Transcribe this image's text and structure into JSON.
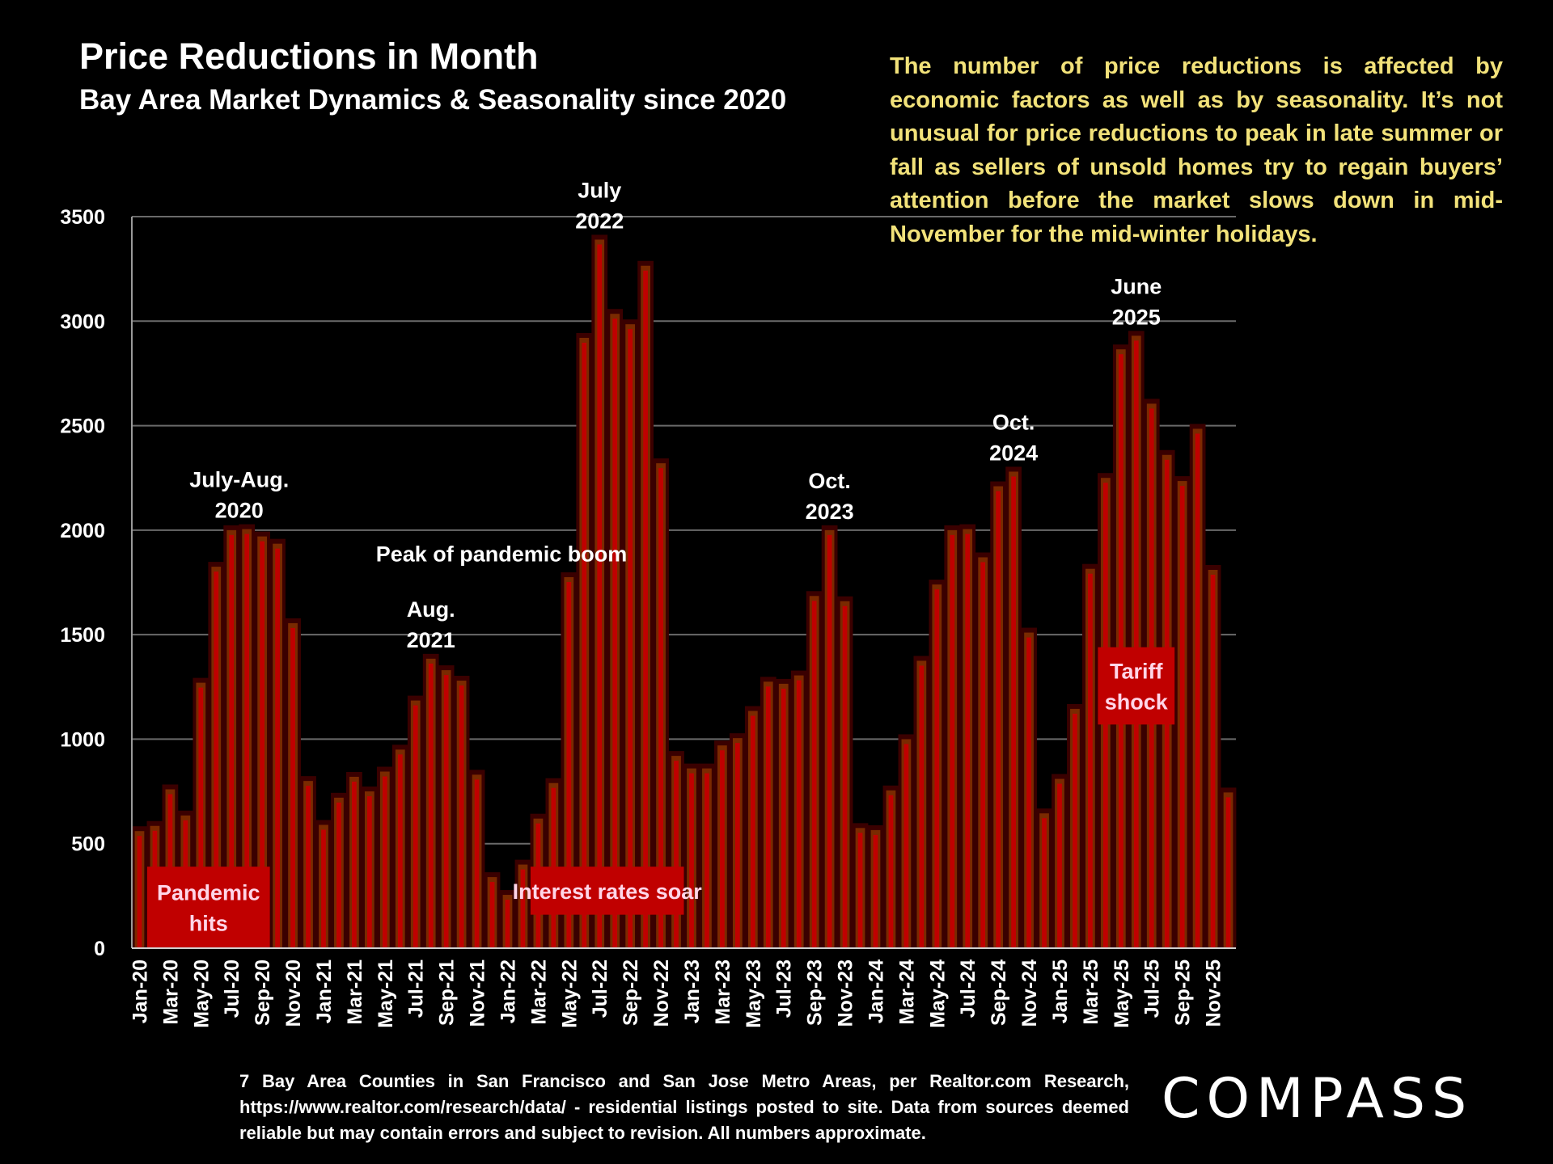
{
  "header": {
    "title": "Price Reductions in Month",
    "subtitle": "Bay Area Market Dynamics & Seasonality since 2020"
  },
  "callout_text": "The number of price reductions is affected by economic factors as well as by seasonality. It’s not unusual for price reductions to peak in late summer or fall as sellers of unsold homes try to regain buyers’ attention before the market slows down in mid-November for the mid-winter holidays.",
  "footer": {
    "source_text": "7 Bay Area Counties in San Francisco and San Jose Metro Areas, per Realtor.com Research, https://www.realtor.com/research/data/ - residential listings posted to site.  Data from sources deemed reliable but may contain errors and subject to revision. All numbers approximate.",
    "logo": "COMPASS"
  },
  "colors": {
    "bar": "#c00000",
    "bar_edge": "#7a2a00",
    "callout": "#f2e27a",
    "annotation_box": "#c00000",
    "gridline": "#6a6a6a",
    "background": "#000000"
  },
  "chart_data": {
    "type": "bar",
    "title": "Price Reductions in Month",
    "subtitle": "Bay Area Market Dynamics & Seasonality since 2020",
    "xlabel": "",
    "ylabel": "",
    "ylim": [
      0,
      3500
    ],
    "yticks": [
      0,
      500,
      1000,
      1500,
      2000,
      2500,
      3000,
      3500
    ],
    "grid": true,
    "legend": "none",
    "categories": [
      "Jan-20",
      "Feb-20",
      "Mar-20",
      "Apr-20",
      "May-20",
      "Jun-20",
      "Jul-20",
      "Aug-20",
      "Sep-20",
      "Oct-20",
      "Nov-20",
      "Dec-20",
      "Jan-21",
      "Feb-21",
      "Mar-21",
      "Apr-21",
      "May-21",
      "Jun-21",
      "Jul-21",
      "Aug-21",
      "Sep-21",
      "Oct-21",
      "Nov-21",
      "Dec-21",
      "Jan-22",
      "Feb-22",
      "Mar-22",
      "Apr-22",
      "May-22",
      "Jun-22",
      "Jul-22",
      "Aug-22",
      "Sep-22",
      "Oct-22",
      "Nov-22",
      "Dec-22",
      "Jan-23",
      "Feb-23",
      "Mar-23",
      "Apr-23",
      "May-23",
      "Jun-23",
      "Jul-23",
      "Aug-23",
      "Sep-23",
      "Oct-23",
      "Nov-23",
      "Dec-23",
      "Jan-24",
      "Feb-24",
      "Mar-24",
      "Apr-24",
      "May-24",
      "Jun-24",
      "Jul-24",
      "Aug-24",
      "Sep-24",
      "Oct-24",
      "Nov-24",
      "Dec-24",
      "Jan-25",
      "Feb-25",
      "Mar-25",
      "Apr-25",
      "May-25",
      "Jun-25",
      "Jul-25",
      "Aug-25",
      "Sep-25",
      "Oct-25",
      "Nov-25",
      "Dec-25"
    ],
    "tick_labels_shown": [
      "Jan-20",
      "Mar-20",
      "May-20",
      "Jul-20",
      "Sep-20",
      "Nov-20",
      "Jan-21",
      "Mar-21",
      "May-21",
      "Jul-21",
      "Sep-21",
      "Nov-21",
      "Jan-22",
      "Mar-22",
      "May-22",
      "Jul-22",
      "Sep-22",
      "Nov-22",
      "Jan-23",
      "Mar-23",
      "May-23",
      "Jul-23",
      "Sep-23",
      "Nov-23",
      "Jan-24",
      "Mar-24",
      "May-24",
      "Jul-24",
      "Sep-24",
      "Nov-24",
      "Jan-25",
      "Mar-25",
      "May-25",
      "Jul-25",
      "Sep-25",
      "Nov-25"
    ],
    "values": [
      560,
      585,
      760,
      635,
      1270,
      1825,
      2000,
      2005,
      1970,
      1935,
      1555,
      800,
      590,
      720,
      820,
      750,
      845,
      950,
      1185,
      1385,
      1330,
      1280,
      830,
      340,
      255,
      400,
      620,
      790,
      1775,
      2920,
      3390,
      3035,
      2985,
      3265,
      2320,
      920,
      860,
      860,
      970,
      1005,
      1135,
      1275,
      1265,
      1305,
      1685,
      2000,
      1660,
      575,
      565,
      755,
      1000,
      1375,
      1740,
      2000,
      2005,
      1870,
      2210,
      2280,
      1510,
      645,
      810,
      1145,
      1815,
      2250,
      2865,
      2930,
      2605,
      2360,
      2235,
      2485,
      1810,
      745
    ],
    "annotations": [
      {
        "text": [
          "July-Aug.",
          "2020"
        ],
        "at": "Aug-20"
      },
      {
        "text": [
          "Peak of pandemic boom"
        ],
        "at": "Dec-21",
        "value": 1850
      },
      {
        "text": [
          "Aug.",
          "2021"
        ],
        "at": "Aug-21"
      },
      {
        "text": [
          "July",
          "2022"
        ],
        "at": "Jul-22"
      },
      {
        "text": [
          "Oct.",
          "2023"
        ],
        "at": "Oct-23"
      },
      {
        "text": [
          "Oct.",
          "2024"
        ],
        "at": "Oct-24"
      },
      {
        "text": [
          "June",
          "2025"
        ],
        "at": "Jun-25"
      }
    ],
    "event_boxes": [
      {
        "text": [
          "Pandemic",
          "hits"
        ],
        "from": "Feb-20",
        "to": "Sep-20",
        "y_from": 0,
        "y_to": 390
      },
      {
        "text": [
          "Interest rates soar"
        ],
        "from": "Mar-22",
        "to": "Dec-22",
        "y_from": 160,
        "y_to": 390
      },
      {
        "text": [
          "Tariff",
          "shock"
        ],
        "from": "Apr-25",
        "to": "Aug-25",
        "y_from": 1070,
        "y_to": 1440
      }
    ]
  }
}
